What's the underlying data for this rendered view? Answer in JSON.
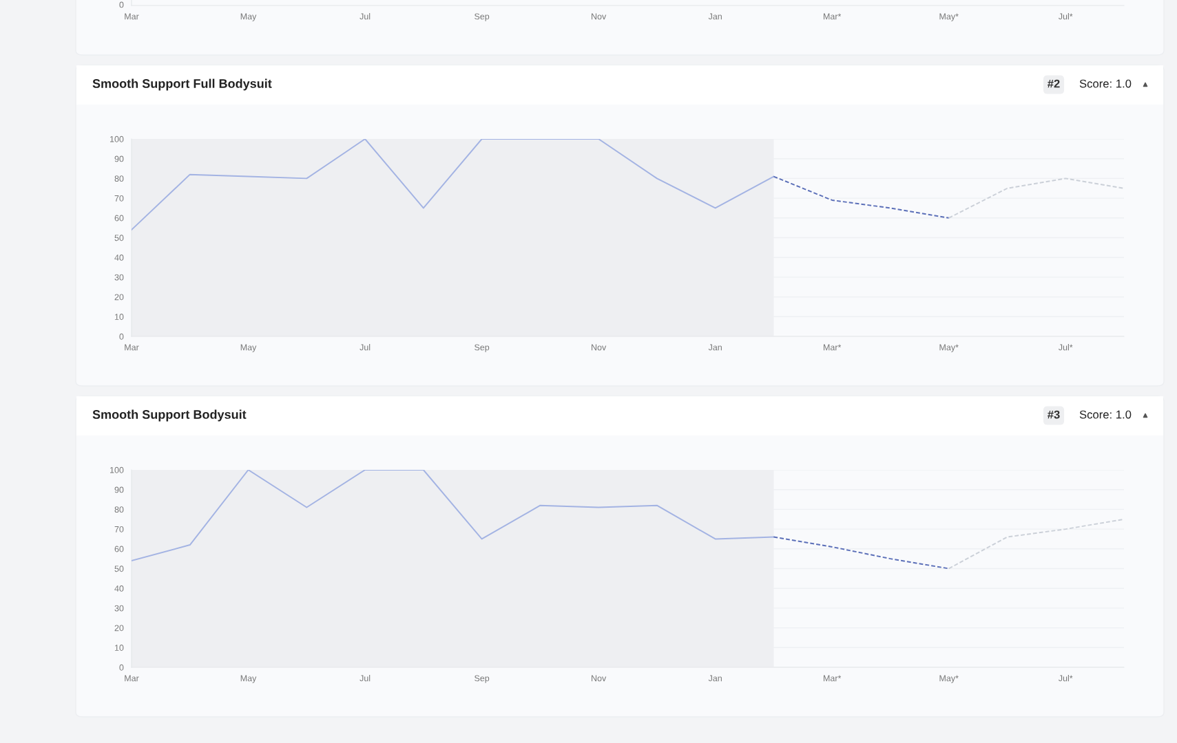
{
  "chart_data": [
    {
      "type": "other",
      "annotations": [
        "0"
      ],
      "categories": [
        "Mar",
        null,
        "May",
        null,
        "Jul",
        null,
        "Sep",
        null,
        "Nov",
        null,
        "Jan",
        null,
        "Mar*",
        null,
        "May*",
        null,
        "Jul*",
        null
      ]
    },
    {
      "type": "line",
      "title": "Smooth Support Full Bodysuit",
      "annotations": [
        "#2",
        "Score: 1.0"
      ],
      "ylim": [
        0,
        100
      ],
      "yticks": [
        0,
        10,
        20,
        30,
        40,
        50,
        60,
        70,
        80,
        90,
        100
      ],
      "grid": "y",
      "categories": [
        "Mar",
        null,
        "May",
        null,
        "Jul",
        null,
        "Sep",
        null,
        "Nov",
        null,
        "Jan",
        null,
        "Mar*",
        null,
        "May*",
        null,
        "Jul*",
        null
      ],
      "series": [
        {
          "color": "#a3b3e3",
          "line_style": "solid",
          "values": [
            54,
            82,
            81,
            80,
            100,
            65,
            100,
            100,
            100,
            80,
            65,
            81,
            null,
            null,
            null,
            null,
            null,
            null
          ]
        },
        {
          "color": "#5b6fb8",
          "line_style": "dashed",
          "values": [
            null,
            null,
            null,
            null,
            null,
            null,
            null,
            null,
            null,
            null,
            null,
            81,
            69,
            65,
            60,
            null,
            null,
            null
          ]
        },
        {
          "color": "#cbd0d8",
          "line_style": "dashed",
          "values": [
            null,
            null,
            null,
            null,
            null,
            null,
            null,
            null,
            null,
            null,
            null,
            null,
            null,
            null,
            60,
            75,
            80,
            75
          ]
        }
      ]
    },
    {
      "type": "line",
      "title": "Smooth Support Bodysuit",
      "annotations": [
        "#3",
        "Score: 1.0"
      ],
      "ylim": [
        0,
        100
      ],
      "yticks": [
        0,
        10,
        20,
        30,
        40,
        50,
        60,
        70,
        80,
        90,
        100
      ],
      "grid": "y",
      "categories": [
        "Mar",
        null,
        "May",
        null,
        "Jul",
        null,
        "Sep",
        null,
        "Nov",
        null,
        "Jan",
        null,
        "Mar*",
        null,
        "May*",
        null,
        "Jul*",
        null
      ],
      "series": [
        {
          "color": "#a3b3e3",
          "line_style": "solid",
          "values": [
            54,
            62,
            100,
            81,
            100,
            100,
            65,
            82,
            81,
            82,
            65,
            66,
            null,
            null,
            null,
            null,
            null,
            null
          ]
        },
        {
          "color": "#5b6fb8",
          "line_style": "dashed",
          "values": [
            null,
            null,
            null,
            null,
            null,
            null,
            null,
            null,
            null,
            null,
            null,
            66,
            61,
            55,
            50,
            null,
            null,
            null
          ]
        },
        {
          "color": "#cbd0d8",
          "line_style": "dashed",
          "values": [
            null,
            null,
            null,
            null,
            null,
            null,
            null,
            null,
            null,
            null,
            null,
            null,
            null,
            null,
            50,
            66,
            70,
            75
          ]
        }
      ]
    }
  ]
}
